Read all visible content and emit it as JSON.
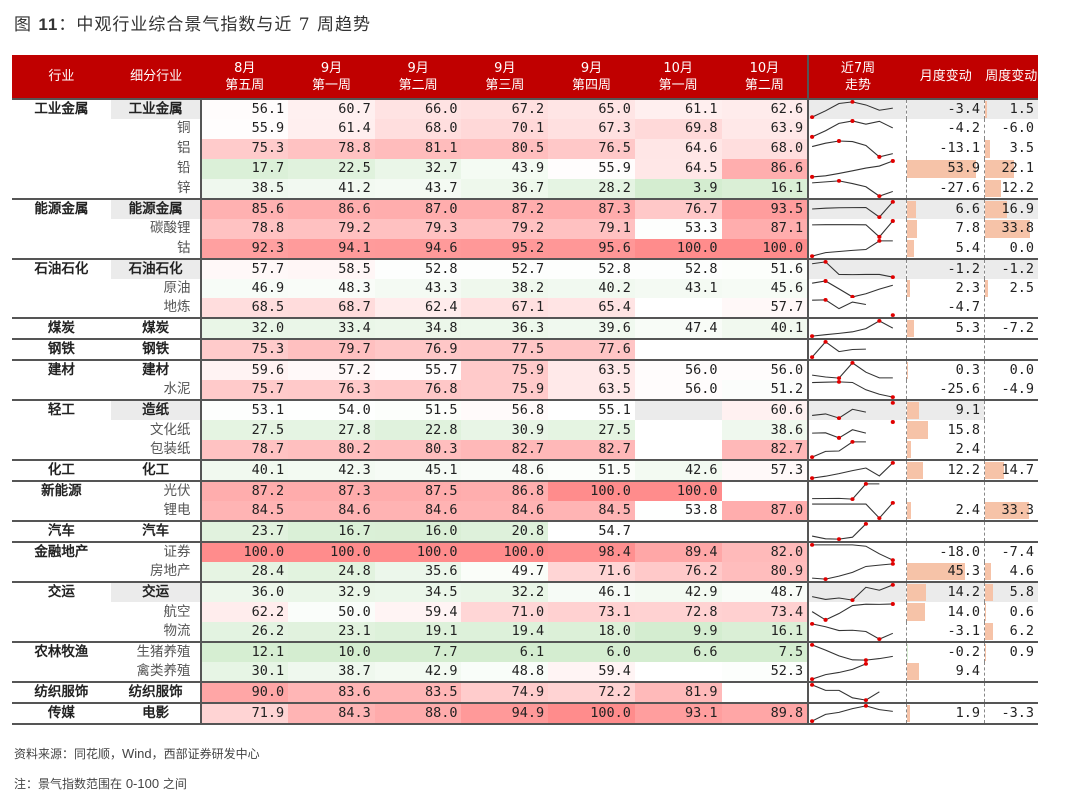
{
  "title": {
    "prefix": "图",
    "number": "11",
    "text": "：中观行业综合景气指数与近 7 周趋势"
  },
  "header": {
    "industry": "行业",
    "sub_industry": "细分行业",
    "weeks": [
      {
        "month": "8月",
        "week": "第五周"
      },
      {
        "month": "9月",
        "week": "第一周"
      },
      {
        "month": "9月",
        "week": "第二周"
      },
      {
        "month": "9月",
        "week": "第三周"
      },
      {
        "month": "9月",
        "week": "第四周"
      },
      {
        "month": "10月",
        "week": "第一周"
      },
      {
        "month": "10月",
        "week": "第二周"
      }
    ],
    "trend_line1": "近7周",
    "trend_line2": "走势",
    "monthly_change": "月度变动",
    "weekly_change": "周度变动"
  },
  "colors": {
    "header_bg": "#C00000",
    "high": "#FF8C8C",
    "low": "#D4EDD0",
    "bar_positive": "#F6C3A8",
    "bar_negative": "#D8EED2",
    "spark_marker": "#E00000"
  },
  "rows": [
    {
      "ind": "工业金属",
      "sub": "工业金属",
      "bold": true,
      "gray": true,
      "group_start": true,
      "values": [
        "56.1",
        "60.7",
        "66.0",
        "67.2",
        "65.0",
        "61.1",
        "62.6"
      ],
      "m": "-3.4",
      "w": "1.5"
    },
    {
      "ind": "",
      "sub": "铜",
      "values": [
        "55.9",
        "61.4",
        "68.0",
        "70.1",
        "67.3",
        "69.8",
        "63.9"
      ],
      "m": "-4.2",
      "w": "-6.0"
    },
    {
      "ind": "",
      "sub": "铝",
      "values": [
        "75.3",
        "78.8",
        "81.1",
        "80.5",
        "76.5",
        "64.6",
        "68.0"
      ],
      "m": "-13.1",
      "w": "3.5"
    },
    {
      "ind": "",
      "sub": "铅",
      "values": [
        "17.7",
        "22.5",
        "32.7",
        "43.9",
        "55.9",
        "64.5",
        "86.6"
      ],
      "m": "53.9",
      "w": "22.1"
    },
    {
      "ind": "",
      "sub": "锌",
      "values": [
        "38.5",
        "41.2",
        "43.7",
        "36.7",
        "28.2",
        "3.9",
        "16.1"
      ],
      "m": "-27.6",
      "w": "12.2"
    },
    {
      "ind": "能源金属",
      "sub": "能源金属",
      "bold": true,
      "gray": true,
      "group_start": true,
      "values": [
        "85.6",
        "86.6",
        "87.0",
        "87.2",
        "87.3",
        "76.7",
        "93.5"
      ],
      "m": "6.6",
      "w": "16.9"
    },
    {
      "ind": "",
      "sub": "碳酸锂",
      "values": [
        "78.8",
        "79.2",
        "79.3",
        "79.2",
        "79.1",
        "53.3",
        "87.1"
      ],
      "m": "7.8",
      "w": "33.8"
    },
    {
      "ind": "",
      "sub": "钴",
      "values": [
        "92.3",
        "94.1",
        "94.6",
        "95.2",
        "95.6",
        "100.0",
        "100.0"
      ],
      "m": "5.4",
      "w": "0.0"
    },
    {
      "ind": "石油石化",
      "sub": "石油石化",
      "bold": true,
      "gray": true,
      "group_start": true,
      "values": [
        "57.7",
        "58.5",
        "52.8",
        "52.7",
        "52.8",
        "52.8",
        "51.6"
      ],
      "m": "-1.2",
      "w": "-1.2"
    },
    {
      "ind": "",
      "sub": "原油",
      "values": [
        "46.9",
        "48.3",
        "43.3",
        "38.2",
        "40.2",
        "43.1",
        "45.6"
      ],
      "m": "2.3",
      "w": "2.5"
    },
    {
      "ind": "",
      "sub": "地炼",
      "values": [
        "68.5",
        "68.7",
        "62.4",
        "67.1",
        "65.4",
        "",
        "57.7"
      ],
      "m": "-4.7",
      "w": ""
    },
    {
      "ind": "煤炭",
      "sub": "煤炭",
      "bold": true,
      "group_start": true,
      "values": [
        "32.0",
        "33.4",
        "34.8",
        "36.3",
        "39.6",
        "47.4",
        "40.1"
      ],
      "m": "5.3",
      "w": "-7.2"
    },
    {
      "ind": "钢铁",
      "sub": "钢铁",
      "bold": true,
      "group_start": true,
      "values": [
        "75.3",
        "79.7",
        "76.9",
        "77.5",
        "77.6",
        "",
        ""
      ],
      "m": "",
      "w": ""
    },
    {
      "ind": "建材",
      "sub": "建材",
      "bold": true,
      "group_start": true,
      "values": [
        "59.6",
        "57.2",
        "55.7",
        "75.9",
        "63.5",
        "56.0",
        "56.0"
      ],
      "m": "0.3",
      "w": "0.0"
    },
    {
      "ind": "",
      "sub": "水泥",
      "values": [
        "75.7",
        "76.3",
        "76.8",
        "75.9",
        "63.5",
        "56.0",
        "51.2"
      ],
      "m": "-25.6",
      "w": "-4.9"
    },
    {
      "ind": "轻工",
      "sub": "造纸",
      "bold": true,
      "gray": true,
      "group_start": true,
      "values": [
        "53.1",
        "54.0",
        "51.5",
        "56.8",
        "55.1",
        "",
        "60.6"
      ],
      "m": "9.1",
      "w": ""
    },
    {
      "ind": "",
      "sub": "文化纸",
      "values": [
        "27.5",
        "27.8",
        "22.8",
        "30.9",
        "27.5",
        "",
        "38.6"
      ],
      "m": "15.8",
      "w": ""
    },
    {
      "ind": "",
      "sub": "包装纸",
      "values": [
        "78.7",
        "80.2",
        "80.3",
        "82.7",
        "82.7",
        "",
        "82.7"
      ],
      "m": "2.4",
      "w": ""
    },
    {
      "ind": "化工",
      "sub": "化工",
      "bold": true,
      "group_start": true,
      "values": [
        "40.1",
        "42.3",
        "45.1",
        "48.6",
        "51.5",
        "42.6",
        "57.3"
      ],
      "m": "12.2",
      "w": "14.7"
    },
    {
      "ind": "新能源",
      "sub": "光伏",
      "group_start": true,
      "values": [
        "87.2",
        "87.3",
        "87.5",
        "86.8",
        "100.0",
        "100.0",
        ""
      ],
      "m": "",
      "w": ""
    },
    {
      "ind": "",
      "sub": "锂电",
      "values": [
        "84.5",
        "84.6",
        "84.6",
        "84.6",
        "84.5",
        "53.8",
        "87.0"
      ],
      "m": "2.4",
      "w": "33.3"
    },
    {
      "ind": "汽车",
      "sub": "汽车",
      "bold": true,
      "group_start": true,
      "values": [
        "23.7",
        "16.7",
        "16.0",
        "20.8",
        "54.7",
        "",
        ""
      ],
      "m": "",
      "w": ""
    },
    {
      "ind": "金融地产",
      "sub": "证券",
      "group_start": true,
      "values": [
        "100.0",
        "100.0",
        "100.0",
        "100.0",
        "98.4",
        "89.4",
        "82.0"
      ],
      "m": "-18.0",
      "w": "-7.4"
    },
    {
      "ind": "",
      "sub": "房地产",
      "values": [
        "28.4",
        "24.8",
        "35.6",
        "49.7",
        "71.6",
        "76.2",
        "80.9"
      ],
      "m": "45.3",
      "w": "4.6"
    },
    {
      "ind": "交运",
      "sub": "交运",
      "bold": true,
      "gray": true,
      "group_start": true,
      "values": [
        "36.0",
        "32.9",
        "34.5",
        "32.2",
        "46.1",
        "42.9",
        "48.7"
      ],
      "m": "14.2",
      "w": "5.8"
    },
    {
      "ind": "",
      "sub": "航空",
      "values": [
        "62.2",
        "50.0",
        "59.4",
        "71.0",
        "73.1",
        "72.8",
        "73.4"
      ],
      "m": "14.0",
      "w": "0.6"
    },
    {
      "ind": "",
      "sub": "物流",
      "values": [
        "26.2",
        "23.1",
        "19.1",
        "19.4",
        "18.0",
        "9.9",
        "16.1"
      ],
      "m": "-3.1",
      "w": "6.2"
    },
    {
      "ind": "农林牧渔",
      "sub": "生猪养殖",
      "group_start": true,
      "values": [
        "12.1",
        "10.0",
        "7.7",
        "6.1",
        "6.0",
        "6.6",
        "7.5"
      ],
      "m": "-0.2",
      "w": "0.9"
    },
    {
      "ind": "",
      "sub": "禽类养殖",
      "values": [
        "30.1",
        "38.7",
        "42.9",
        "48.8",
        "59.4",
        "",
        "52.3"
      ],
      "m": "9.4",
      "w": ""
    },
    {
      "ind": "纺织服饰",
      "sub": "纺织服饰",
      "bold": true,
      "group_start": true,
      "values": [
        "90.0",
        "83.6",
        "83.5",
        "74.9",
        "72.2",
        "81.9",
        ""
      ],
      "m": "",
      "w": ""
    },
    {
      "ind": "传媒",
      "sub": "电影",
      "bold": true,
      "group_start": true,
      "values": [
        "71.9",
        "84.3",
        "88.0",
        "94.9",
        "100.0",
        "93.1",
        "89.8"
      ],
      "m": "1.9",
      "w": "-3.3"
    }
  ],
  "footer": {
    "source_prefix": "资料来源：同花顺，",
    "source_latin": "Wind",
    "source_suffix": "，西部证券研发中心",
    "note_prefix": "注：景气指数范围在 ",
    "note_latin": "0-100",
    "note_suffix": " 之间"
  }
}
